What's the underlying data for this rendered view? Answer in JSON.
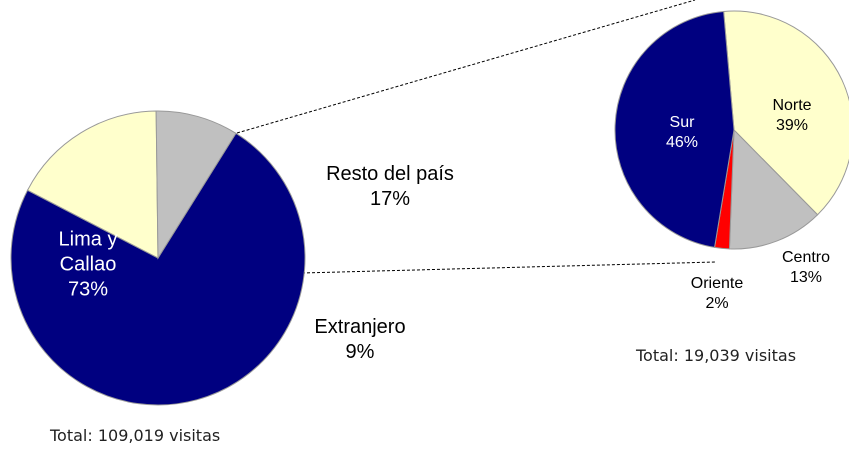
{
  "chart_data": [
    {
      "type": "pie",
      "categories": [
        "Lima y Callao",
        "Resto del país",
        "Extranjero"
      ],
      "values": [
        73,
        17,
        9
      ],
      "value_labels": [
        "73%",
        "17%",
        "9%"
      ],
      "colors": [
        "#000080",
        "#ffffcc",
        "#c0c0c0"
      ],
      "annotation": "Total: 109,019 visitas"
    },
    {
      "type": "pie",
      "categories": [
        "Norte",
        "Centro",
        "Oriente",
        "Sur"
      ],
      "values": [
        39,
        13,
        2,
        46
      ],
      "value_labels": [
        "39%",
        "13%",
        "2%",
        "46%"
      ],
      "colors": [
        "#ffffcc",
        "#c0c0c0",
        "#ff0000",
        "#000080"
      ],
      "annotation": "Total: 19,039 visitas"
    }
  ]
}
